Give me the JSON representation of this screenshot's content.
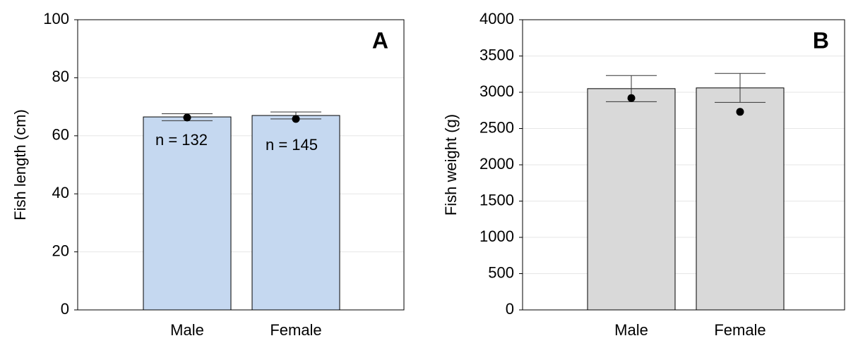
{
  "chart_data": [
    {
      "panel_label": "A",
      "type": "bar",
      "categories": [
        "Male",
        "Female"
      ],
      "values": [
        66.5,
        67.0
      ],
      "error_low": [
        65.2,
        65.8
      ],
      "error_high": [
        67.6,
        68.2
      ],
      "points": [
        66.3,
        65.8
      ],
      "annotations": [
        "n = 132",
        "n = 145"
      ],
      "ylabel": "Fish length (cm)",
      "ylim": [
        0,
        100
      ],
      "yticks": [
        "0",
        "20",
        "40",
        "60",
        "80",
        "100"
      ],
      "bar_color": "#c5d8f0",
      "grid": true
    },
    {
      "panel_label": "B",
      "type": "bar",
      "categories": [
        "Male",
        "Female"
      ],
      "values": [
        3050,
        3060
      ],
      "error_low": [
        2870,
        2860
      ],
      "error_high": [
        3230,
        3260
      ],
      "points": [
        2920,
        2730
      ],
      "annotations": [],
      "ylabel": "Fish weight (g)",
      "ylim": [
        0,
        4000
      ],
      "yticks": [
        "0",
        "500",
        "1000",
        "1500",
        "2000",
        "2500",
        "3000",
        "3500",
        "4000"
      ],
      "bar_color": "#d9d9d9",
      "grid": true
    }
  ]
}
